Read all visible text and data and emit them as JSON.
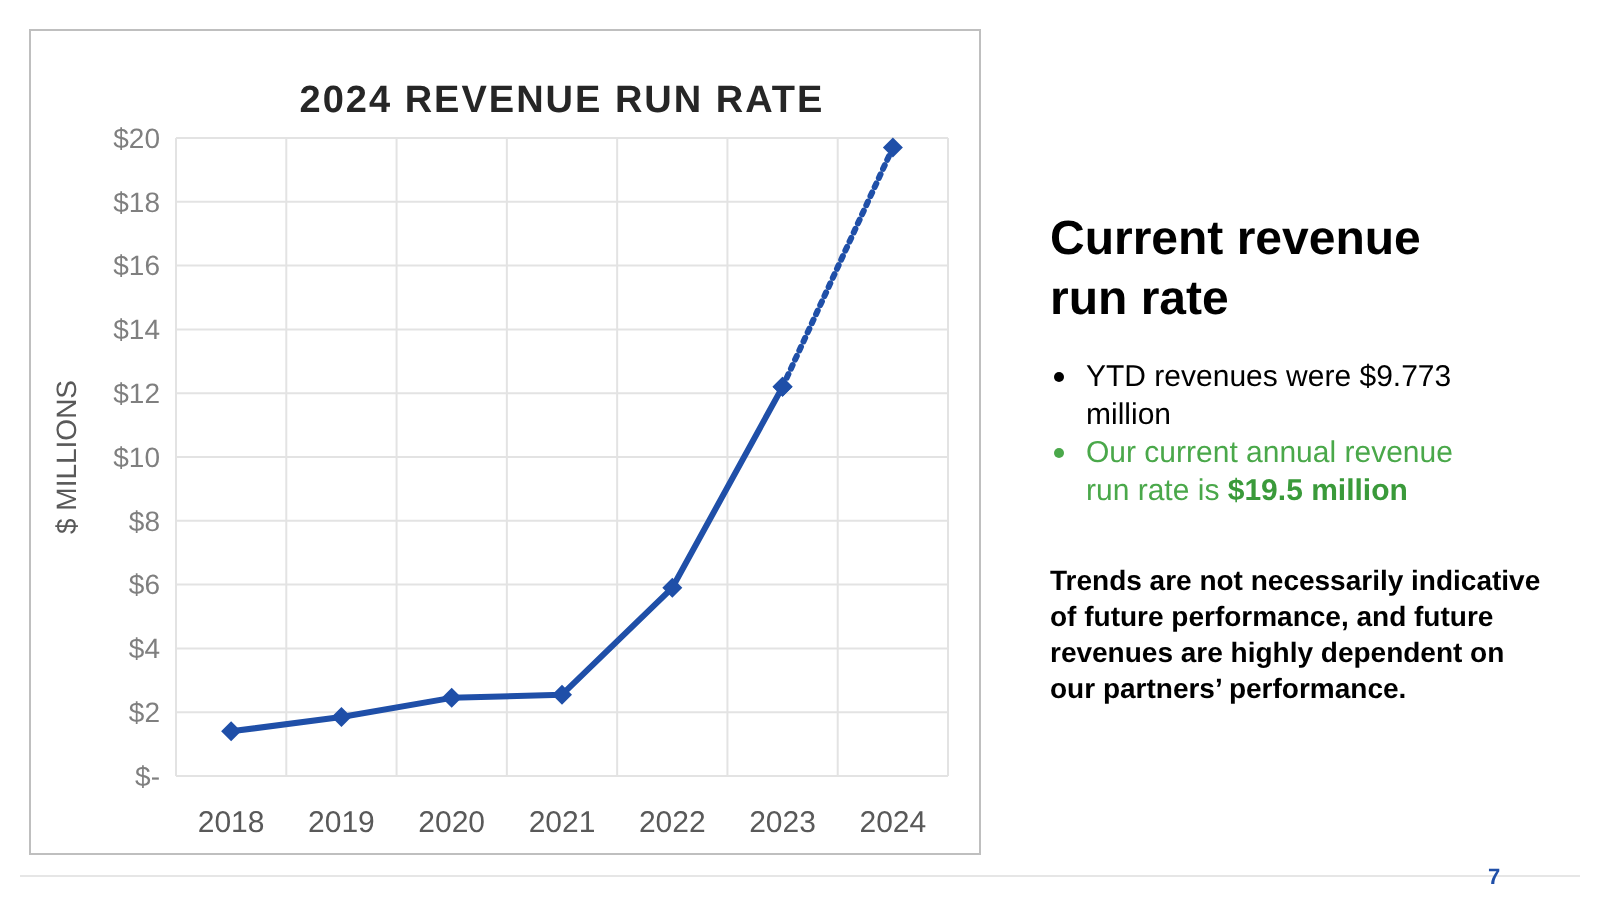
{
  "chart_data": {
    "type": "line",
    "title": "2024 REVENUE RUN RATE",
    "ylabel": "$ MILLIONS",
    "categories": [
      "2018",
      "2019",
      "2020",
      "2021",
      "2022",
      "2023",
      "2024"
    ],
    "series": [
      {
        "color": "#1f4fa8",
        "values": [
          1.4,
          1.85,
          2.45,
          2.55,
          5.9,
          12.2,
          null
        ],
        "line_style": "solid"
      },
      {
        "color": "#1f4fa8",
        "values": [
          null,
          null,
          null,
          null,
          null,
          12.2,
          19.7
        ],
        "line_style": "dotted"
      }
    ],
    "ylim": [
      0,
      20
    ],
    "yticks": [
      {
        "value": 0,
        "label": "$-"
      },
      {
        "value": 2,
        "label": "$2"
      },
      {
        "value": 4,
        "label": "$4"
      },
      {
        "value": 6,
        "label": "$6"
      },
      {
        "value": 8,
        "label": "$8"
      },
      {
        "value": 10,
        "label": "$10"
      },
      {
        "value": 12,
        "label": "$12"
      },
      {
        "value": 14,
        "label": "$14"
      },
      {
        "value": 16,
        "label": "$16"
      },
      {
        "value": 18,
        "label": "$18"
      },
      {
        "value": 20,
        "label": "$20"
      }
    ],
    "grid": true,
    "marker": "diamond",
    "annotations": [
      "Current revenue run rate",
      "YTD revenues were $9.773 million",
      "Our current annual revenue run rate is",
      "$19.5 million",
      "Trends are not necessarily indicative of future performance, and future revenues are highly dependent on our partners’ performance.",
      "7"
    ]
  }
}
